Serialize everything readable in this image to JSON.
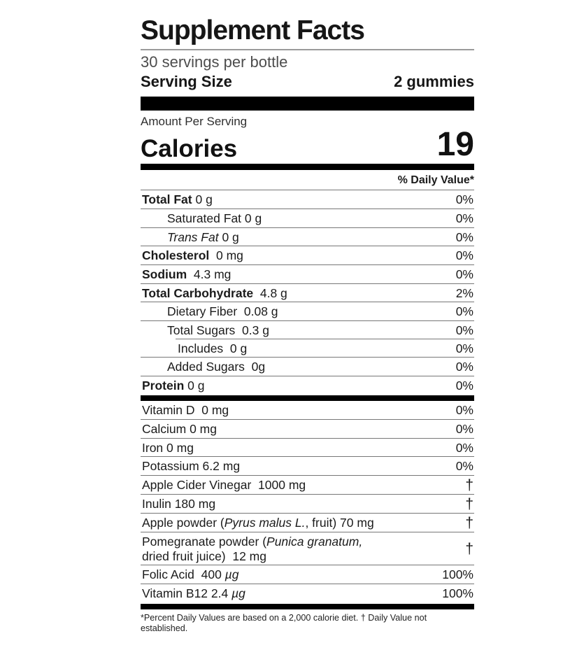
{
  "title": "Supplement Facts",
  "servings_per_bottle": "30 servings per bottle",
  "serving_size": {
    "label": "Serving Size",
    "value": "2 gummies"
  },
  "amount_per_serving": "Amount Per Serving",
  "calories": {
    "label": "Calories",
    "value": "19"
  },
  "daily_value_header": "% Daily Value*",
  "rows": [
    {
      "name": "total-fat",
      "indent": 0,
      "lines": [
        [
          {
            "t": "Total Fat",
            "b": 1
          },
          {
            "t": " 0 g"
          }
        ]
      ],
      "value": "0%"
    },
    {
      "name": "saturated-fat",
      "indent": 1,
      "lines": [
        [
          {
            "t": "Saturated Fat 0 g"
          }
        ]
      ],
      "value": "0%"
    },
    {
      "name": "trans-fat",
      "indent": 1,
      "lines": [
        [
          {
            "t": "Trans Fat",
            "i": 1
          },
          {
            "t": " 0 g"
          }
        ]
      ],
      "value": "0%"
    },
    {
      "name": "cholesterol",
      "indent": 0,
      "lines": [
        [
          {
            "t": "Cholesterol",
            "b": 1
          },
          {
            "t": "  0 mg"
          }
        ]
      ],
      "value": "0%"
    },
    {
      "name": "sodium",
      "indent": 0,
      "lines": [
        [
          {
            "t": "Sodium",
            "b": 1
          },
          {
            "t": "  4.3 mg"
          }
        ]
      ],
      "value": "0%"
    },
    {
      "name": "total-carbohydrate",
      "indent": 0,
      "lines": [
        [
          {
            "t": "Total Carbohydrate",
            "b": 1
          },
          {
            "t": "  4.8 g"
          }
        ]
      ],
      "value": "2%"
    },
    {
      "name": "dietary-fiber",
      "indent": 1,
      "lines": [
        [
          {
            "t": "Dietary Fiber  0.08 g"
          }
        ]
      ],
      "value": "0%"
    },
    {
      "name": "total-sugars",
      "indent": 1,
      "sepIndent": true,
      "lines": [
        [
          {
            "t": "Total Sugars  0.3 g"
          }
        ]
      ],
      "value": "0%"
    },
    {
      "name": "includes",
      "indent": 2,
      "lines": [
        [
          {
            "t": "Includes  0 g"
          }
        ]
      ],
      "value": "0%"
    },
    {
      "name": "added-sugars",
      "indent": 1,
      "lines": [
        [
          {
            "t": "Added Sugars  0g"
          }
        ]
      ],
      "value": "0%"
    },
    {
      "name": "protein",
      "indent": 0,
      "barAfter": true,
      "lines": [
        [
          {
            "t": "Protein",
            "b": 1
          },
          {
            "t": " 0 g"
          }
        ]
      ],
      "value": "0%"
    },
    {
      "name": "vitamin-d",
      "indent": 0,
      "lines": [
        [
          {
            "t": "Vitamin D  0 mg"
          }
        ]
      ],
      "value": "0%"
    },
    {
      "name": "calcium",
      "indent": 0,
      "lines": [
        [
          {
            "t": "Calcium 0 mg"
          }
        ]
      ],
      "value": "0%"
    },
    {
      "name": "iron",
      "indent": 0,
      "lines": [
        [
          {
            "t": "Iron 0 mg"
          }
        ]
      ],
      "value": "0%"
    },
    {
      "name": "potassium",
      "indent": 0,
      "lines": [
        [
          {
            "t": "Potassium 6.2 mg"
          }
        ]
      ],
      "value": "0%"
    },
    {
      "name": "apple-cider-vinegar",
      "indent": 0,
      "lines": [
        [
          {
            "t": "Apple Cider Vinegar  1000 mg"
          }
        ]
      ],
      "value": "†"
    },
    {
      "name": "inulin",
      "indent": 0,
      "lines": [
        [
          {
            "t": "Inulin 180 mg"
          }
        ]
      ],
      "value": "†"
    },
    {
      "name": "apple-powder",
      "indent": 0,
      "lines": [
        [
          {
            "t": "Apple powder ("
          },
          {
            "t": "Pyrus malus L.",
            "i": 1
          },
          {
            "t": ", fruit) 70 mg"
          }
        ]
      ],
      "value": "†"
    },
    {
      "name": "pomegranate-powder",
      "indent": 0,
      "lines": [
        [
          {
            "t": "Pomegranate powder ("
          },
          {
            "t": "Punica granatum,",
            "i": 1
          }
        ],
        [
          {
            "t": "dried fruit juice)  12 mg"
          }
        ]
      ],
      "value": "†"
    },
    {
      "name": "folic-acid",
      "indent": 0,
      "lines": [
        [
          {
            "t": "Folic Acid  400 "
          },
          {
            "t": "µg",
            "i": 1
          }
        ]
      ],
      "value": "100%"
    },
    {
      "name": "vitamin-b12",
      "indent": 0,
      "barAfter": true,
      "lines": [
        [
          {
            "t": "Vitamin B12 2.4 "
          },
          {
            "t": "µg",
            "i": 1
          }
        ]
      ],
      "value": "100%"
    }
  ],
  "footnote": "*Percent Daily Values are based on a 2,000 calorie diet. † Daily Value not established."
}
